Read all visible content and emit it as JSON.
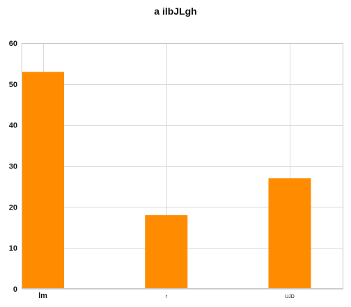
{
  "chart_data": {
    "type": "bar",
    "title": "a ilbJLgh",
    "categories": [
      "lm",
      "r",
      "UJD"
    ],
    "values": [
      53,
      18,
      27
    ],
    "ylim": [
      0,
      60
    ],
    "yticks": [
      0,
      10,
      20,
      30,
      40,
      50,
      60
    ],
    "xlabel": "",
    "ylabel": "",
    "grid": true,
    "bar_color": "#ff8c00",
    "grid_color": "#d9d9d9",
    "axis_color": "#c8c8c8"
  }
}
